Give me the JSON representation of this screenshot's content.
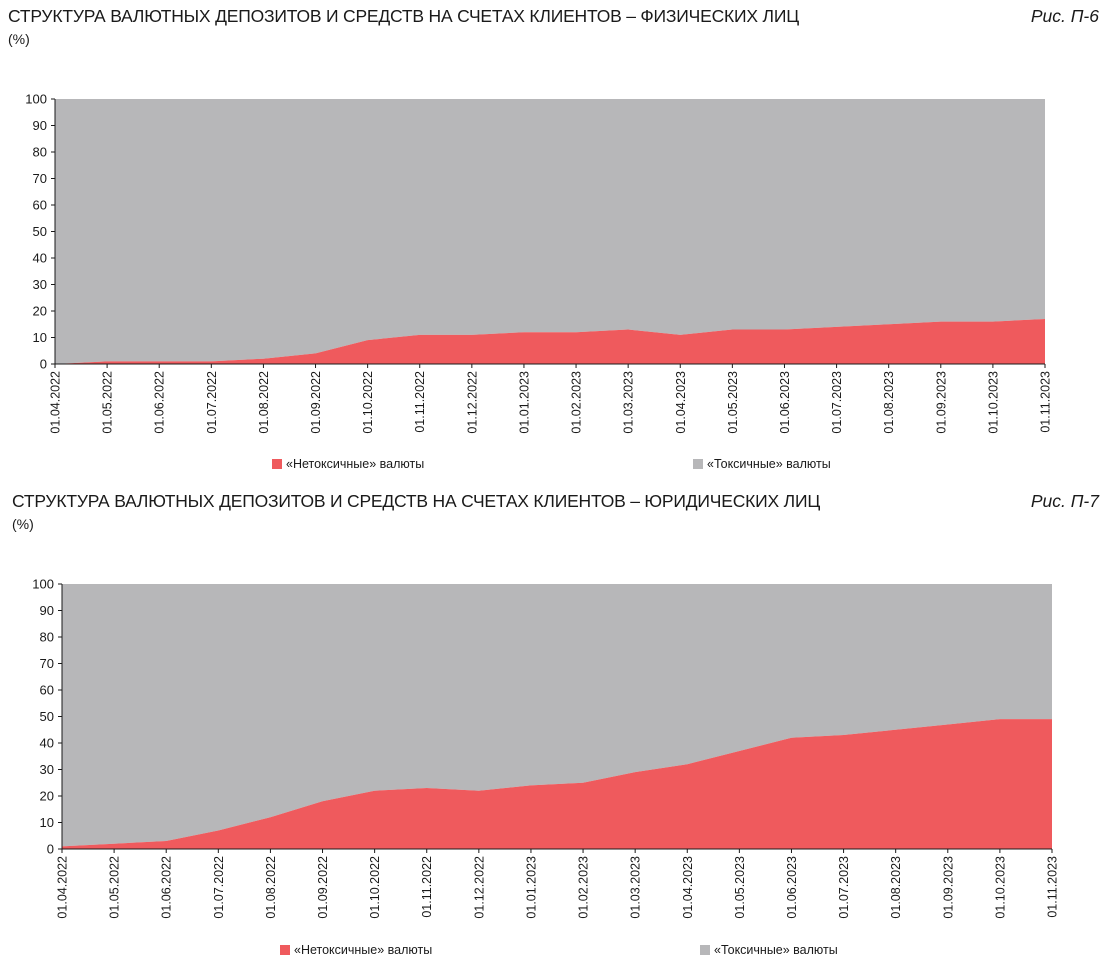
{
  "colors": {
    "non_toxic": "#ef5a5d",
    "toxic": "#b7b7b9"
  },
  "chart_data": [
    {
      "type": "area",
      "stacked": true,
      "title": "СТРУКТУРА ВАЛЮТНЫХ ДЕПОЗИТОВ И СРЕДСТВ НА СЧЕТАХ КЛИЕНТОВ – ФИЗИЧЕСКИХ ЛИЦ",
      "figure_label": "Рис. П-6",
      "ylabel": "(%)",
      "ylim": [
        0,
        100
      ],
      "yticks": [
        0,
        10,
        20,
        30,
        40,
        50,
        60,
        70,
        80,
        90,
        100
      ],
      "categories": [
        "01.04.2022",
        "01.05.2022",
        "01.06.2022",
        "01.07.2022",
        "01.08.2022",
        "01.09.2022",
        "01.10.2022",
        "01.11.2022",
        "01.12.2022",
        "01.01.2023",
        "01.02.2023",
        "01.03.2023",
        "01.04.2023",
        "01.05.2023",
        "01.06.2023",
        "01.07.2023",
        "01.08.2023",
        "01.09.2023",
        "01.10.2023",
        "01.11.2023"
      ],
      "series": [
        {
          "name": "«Нетоксичные» валюты",
          "values": [
            0,
            1,
            1,
            1,
            2,
            4,
            9,
            11,
            11,
            12,
            12,
            13,
            11,
            13,
            13,
            14,
            15,
            16,
            16,
            17
          ]
        },
        {
          "name": "«Токсичные» валюты",
          "values": [
            100,
            99,
            99,
            99,
            98,
            96,
            91,
            89,
            89,
            88,
            88,
            87,
            89,
            87,
            87,
            86,
            85,
            84,
            84,
            83
          ]
        }
      ],
      "legend_position": "bottom"
    },
    {
      "type": "area",
      "stacked": true,
      "title": "СТРУКТУРА ВАЛЮТНЫХ ДЕПОЗИТОВ И СРЕДСТВ НА СЧЕТАХ КЛИЕНТОВ – ЮРИДИЧЕСКИХ ЛИЦ",
      "figure_label": "Рис. П-7",
      "ylabel": "(%)",
      "ylim": [
        0,
        100
      ],
      "yticks": [
        0,
        10,
        20,
        30,
        40,
        50,
        60,
        70,
        80,
        90,
        100
      ],
      "categories": [
        "01.04.2022",
        "01.05.2022",
        "01.06.2022",
        "01.07.2022",
        "01.08.2022",
        "01.09.2022",
        "01.10.2022",
        "01.11.2022",
        "01.12.2022",
        "01.01.2023",
        "01.02.2023",
        "01.03.2023",
        "01.04.2023",
        "01.05.2023",
        "01.06.2023",
        "01.07.2023",
        "01.08.2023",
        "01.09.2023",
        "01.10.2023",
        "01.11.2023"
      ],
      "series": [
        {
          "name": "«Нетоксичные» валюты",
          "values": [
            1,
            2,
            3,
            7,
            12,
            18,
            22,
            23,
            22,
            24,
            25,
            29,
            32,
            37,
            42,
            43,
            45,
            47,
            49,
            49
          ]
        },
        {
          "name": "«Токсичные» валюты",
          "values": [
            99,
            98,
            97,
            93,
            88,
            82,
            78,
            77,
            78,
            76,
            75,
            71,
            68,
            63,
            58,
            57,
            55,
            53,
            51,
            51
          ]
        }
      ],
      "legend_position": "bottom"
    }
  ]
}
